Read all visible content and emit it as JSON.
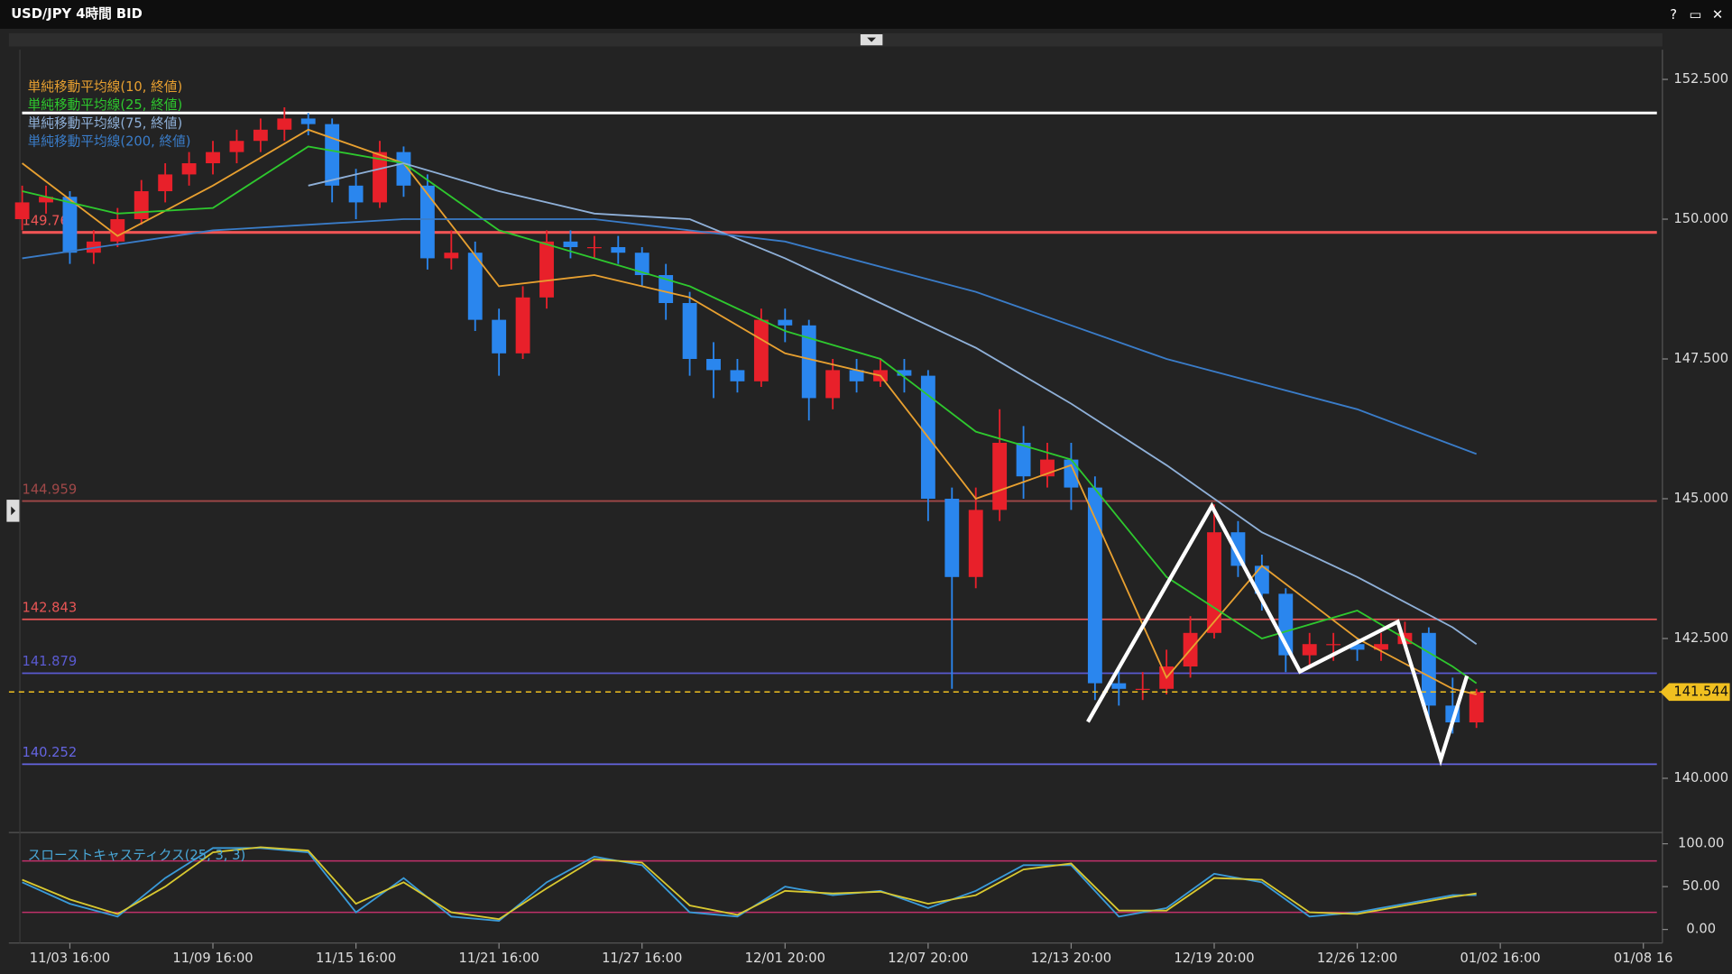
{
  "ui": {
    "window_controls": [
      "?",
      "▭",
      "✕"
    ]
  },
  "chart_data": [
    {
      "type": "candlestick",
      "title": "USD/JPY 4時間 BID",
      "up_color": "#e8202a",
      "down_color": "#2a86ee",
      "xlim": [
        -0.56,
        68.8
      ],
      "ylim": [
        139.09,
        153.03
      ],
      "grid": false,
      "xticks": [
        {
          "value": 2,
          "label": "11/03 16:00"
        },
        {
          "value": 8,
          "label": "11/09 16:00"
        },
        {
          "value": 14,
          "label": "11/15 16:00"
        },
        {
          "value": 20,
          "label": "11/21 16:00"
        },
        {
          "value": 26,
          "label": "11/27 16:00"
        },
        {
          "value": 32,
          "label": "12/01 20:00"
        },
        {
          "value": 38,
          "label": "12/07 20:00"
        },
        {
          "value": 44,
          "label": "12/13 20:00"
        },
        {
          "value": 50,
          "label": "12/19 20:00"
        },
        {
          "value": 56,
          "label": "12/26 12:00"
        },
        {
          "value": 62,
          "label": "01/02 16:00"
        },
        {
          "value": 68,
          "label": "01/08 16"
        }
      ],
      "yticks": [
        {
          "value": 140,
          "label": "140.000"
        },
        {
          "value": 142.5,
          "label": "142.500"
        },
        {
          "value": 145,
          "label": "145.000"
        },
        {
          "value": 147.5,
          "label": "147.500"
        },
        {
          "value": 150,
          "label": "150.000"
        },
        {
          "value": 152.5,
          "label": "152.500"
        }
      ],
      "candles": [
        [
          150.0,
          150.6,
          149.8,
          150.3
        ],
        [
          150.3,
          150.6,
          150.1,
          150.4
        ],
        [
          150.4,
          150.5,
          149.2,
          149.4
        ],
        [
          149.4,
          149.8,
          149.2,
          149.6
        ],
        [
          149.6,
          150.2,
          149.5,
          150.0
        ],
        [
          150.0,
          150.7,
          149.9,
          150.5
        ],
        [
          150.5,
          151.0,
          150.3,
          150.8
        ],
        [
          150.8,
          151.2,
          150.6,
          151.0
        ],
        [
          151.0,
          151.4,
          150.8,
          151.2
        ],
        [
          151.2,
          151.6,
          151.0,
          151.4
        ],
        [
          151.4,
          151.8,
          151.2,
          151.6
        ],
        [
          151.6,
          152.0,
          151.4,
          151.8
        ],
        [
          151.8,
          151.9,
          151.5,
          151.7
        ],
        [
          151.7,
          151.8,
          150.3,
          150.6
        ],
        [
          150.6,
          150.9,
          150.0,
          150.3
        ],
        [
          150.3,
          151.4,
          150.2,
          151.2
        ],
        [
          151.2,
          151.3,
          150.4,
          150.6
        ],
        [
          150.6,
          150.8,
          149.1,
          149.3
        ],
        [
          149.3,
          149.8,
          149.1,
          149.4
        ],
        [
          149.4,
          149.6,
          148.0,
          148.2
        ],
        [
          148.2,
          148.4,
          147.2,
          147.6
        ],
        [
          147.6,
          148.8,
          147.5,
          148.6
        ],
        [
          148.6,
          149.8,
          148.4,
          149.6
        ],
        [
          149.6,
          149.8,
          149.3,
          149.5
        ],
        [
          149.5,
          149.7,
          149.3,
          149.5
        ],
        [
          149.5,
          149.7,
          149.2,
          149.4
        ],
        [
          149.4,
          149.5,
          148.8,
          149.0
        ],
        [
          149.0,
          149.2,
          148.2,
          148.5
        ],
        [
          148.5,
          148.7,
          147.2,
          147.5
        ],
        [
          147.5,
          147.8,
          146.8,
          147.3
        ],
        [
          147.3,
          147.5,
          146.9,
          147.1
        ],
        [
          147.1,
          148.4,
          147.0,
          148.2
        ],
        [
          148.2,
          148.4,
          147.8,
          148.1
        ],
        [
          148.1,
          148.2,
          146.4,
          146.8
        ],
        [
          146.8,
          147.5,
          146.6,
          147.3
        ],
        [
          147.3,
          147.5,
          146.9,
          147.1
        ],
        [
          147.1,
          147.5,
          147.0,
          147.3
        ],
        [
          147.3,
          147.5,
          146.9,
          147.2
        ],
        [
          147.2,
          147.3,
          144.6,
          145.0
        ],
        [
          145.0,
          145.2,
          141.6,
          143.6
        ],
        [
          143.6,
          145.2,
          143.4,
          144.8
        ],
        [
          144.8,
          146.6,
          144.6,
          146.0
        ],
        [
          146.0,
          146.3,
          145.0,
          145.4
        ],
        [
          145.4,
          146.0,
          145.2,
          145.7
        ],
        [
          145.7,
          146.0,
          144.8,
          145.2
        ],
        [
          145.2,
          145.4,
          141.4,
          141.7
        ],
        [
          141.7,
          142.0,
          141.3,
          141.6
        ],
        [
          141.6,
          141.9,
          141.4,
          141.6
        ],
        [
          141.6,
          142.3,
          141.5,
          142.0
        ],
        [
          142.0,
          142.9,
          141.8,
          142.6
        ],
        [
          142.6,
          144.9,
          142.5,
          144.4
        ],
        [
          144.4,
          144.6,
          143.6,
          143.8
        ],
        [
          143.8,
          144.0,
          143.0,
          143.3
        ],
        [
          143.3,
          143.4,
          141.9,
          142.2
        ],
        [
          142.2,
          142.6,
          142.0,
          142.4
        ],
        [
          142.4,
          142.6,
          142.1,
          142.4
        ],
        [
          142.4,
          142.5,
          142.1,
          142.3
        ],
        [
          142.3,
          142.6,
          142.1,
          142.4
        ],
        [
          142.4,
          142.8,
          142.3,
          142.6
        ],
        [
          142.6,
          142.7,
          141.0,
          141.3
        ],
        [
          141.3,
          141.8,
          140.8,
          141.0
        ],
        [
          141.0,
          141.6,
          140.9,
          141.544
        ]
      ],
      "series": [
        {
          "name": "単純移動平均線(10, 終値)",
          "color": "#e8a030",
          "x": [
            0,
            4,
            8,
            12,
            16,
            20,
            24,
            28,
            32,
            36,
            40,
            44,
            48,
            52,
            56,
            60,
            61
          ],
          "values": [
            151.0,
            149.7,
            150.6,
            151.6,
            151.0,
            148.8,
            149.0,
            148.6,
            147.6,
            147.2,
            145.0,
            145.6,
            141.8,
            143.8,
            142.5,
            141.6,
            141.5
          ]
        },
        {
          "name": "単純移動平均線(25, 終値)",
          "color": "#2ec82e",
          "x": [
            0,
            4,
            8,
            12,
            16,
            20,
            24,
            28,
            32,
            36,
            40,
            44,
            48,
            52,
            56,
            60,
            61
          ],
          "values": [
            150.5,
            150.1,
            150.2,
            151.3,
            151.0,
            149.8,
            149.3,
            148.8,
            148.0,
            147.5,
            146.2,
            145.7,
            143.6,
            142.5,
            143.0,
            142.0,
            141.7
          ]
        },
        {
          "name": "単純移動平均線(75, 終値)",
          "color": "#8fb0d8",
          "x": [
            12,
            16,
            20,
            24,
            28,
            32,
            36,
            40,
            44,
            48,
            52,
            56,
            60,
            61
          ],
          "values": [
            150.6,
            151.0,
            150.5,
            150.1,
            150.0,
            149.3,
            148.5,
            147.7,
            146.7,
            145.6,
            144.4,
            143.6,
            142.7,
            142.4
          ]
        },
        {
          "name": "単純移動平均線(200, 終値)",
          "color": "#3a7cc8",
          "x": [
            0,
            8,
            16,
            24,
            32,
            40,
            48,
            56,
            61
          ],
          "values": [
            149.3,
            149.8,
            150.0,
            150.0,
            149.6,
            148.7,
            147.5,
            146.6,
            145.8
          ]
        }
      ],
      "reference_line": {
        "value": 151.9,
        "color": "#ffffff"
      },
      "levels": [
        {
          "value": 149.763,
          "color": "#f05555"
        },
        {
          "value": 144.959,
          "color": "#a04848"
        },
        {
          "value": 142.843,
          "color": "#e85555"
        },
        {
          "value": 141.879,
          "color": "#5a5ad0"
        },
        {
          "value": 140.252,
          "color": "#6464e0"
        }
      ],
      "last_price": 141.544,
      "last_price_color": "#f0c020",
      "annotation_line": {
        "color": "#ffffff",
        "x": [
          44.7,
          49.9,
          53.6,
          57.7,
          59.5,
          60.6
        ],
        "values": [
          141.01,
          144.87,
          141.91,
          142.8,
          140.33,
          141.83
        ]
      }
    },
    {
      "type": "line",
      "title": "スローストキャスティクス(25, 3, 3)",
      "title_color": "#4aa8d8",
      "ylim": [
        -12,
        108
      ],
      "yticks": [
        {
          "value": 0,
          "label": "0.00"
        },
        {
          "value": 50,
          "label": "50.00"
        },
        {
          "value": 100,
          "label": "100.00"
        }
      ],
      "levels": [
        80,
        20
      ],
      "level_color": "#c0306a",
      "series": [
        {
          "color": "#3a9ad8",
          "x": [
            0,
            2,
            4,
            6,
            8,
            10,
            12,
            14,
            16,
            18,
            20,
            22,
            24,
            26,
            28,
            30,
            32,
            34,
            36,
            38,
            40,
            42,
            44,
            46,
            48,
            50,
            52,
            54,
            56,
            58,
            60,
            61
          ],
          "values": [
            55,
            30,
            15,
            60,
            95,
            95,
            90,
            20,
            60,
            15,
            10,
            55,
            85,
            75,
            20,
            15,
            50,
            40,
            45,
            25,
            45,
            75,
            75,
            15,
            25,
            65,
            55,
            15,
            20,
            30,
            40,
            40
          ]
        },
        {
          "color": "#d8c830",
          "x": [
            0,
            2,
            4,
            6,
            8,
            10,
            12,
            14,
            16,
            18,
            20,
            22,
            24,
            26,
            28,
            30,
            32,
            34,
            36,
            38,
            40,
            42,
            44,
            46,
            48,
            50,
            52,
            54,
            56,
            58,
            60,
            61
          ],
          "values": [
            58,
            35,
            18,
            50,
            90,
            96,
            92,
            30,
            55,
            20,
            12,
            48,
            82,
            78,
            28,
            17,
            45,
            42,
            44,
            30,
            40,
            70,
            77,
            22,
            22,
            60,
            58,
            20,
            18,
            28,
            38,
            42
          ]
        }
      ]
    }
  ]
}
